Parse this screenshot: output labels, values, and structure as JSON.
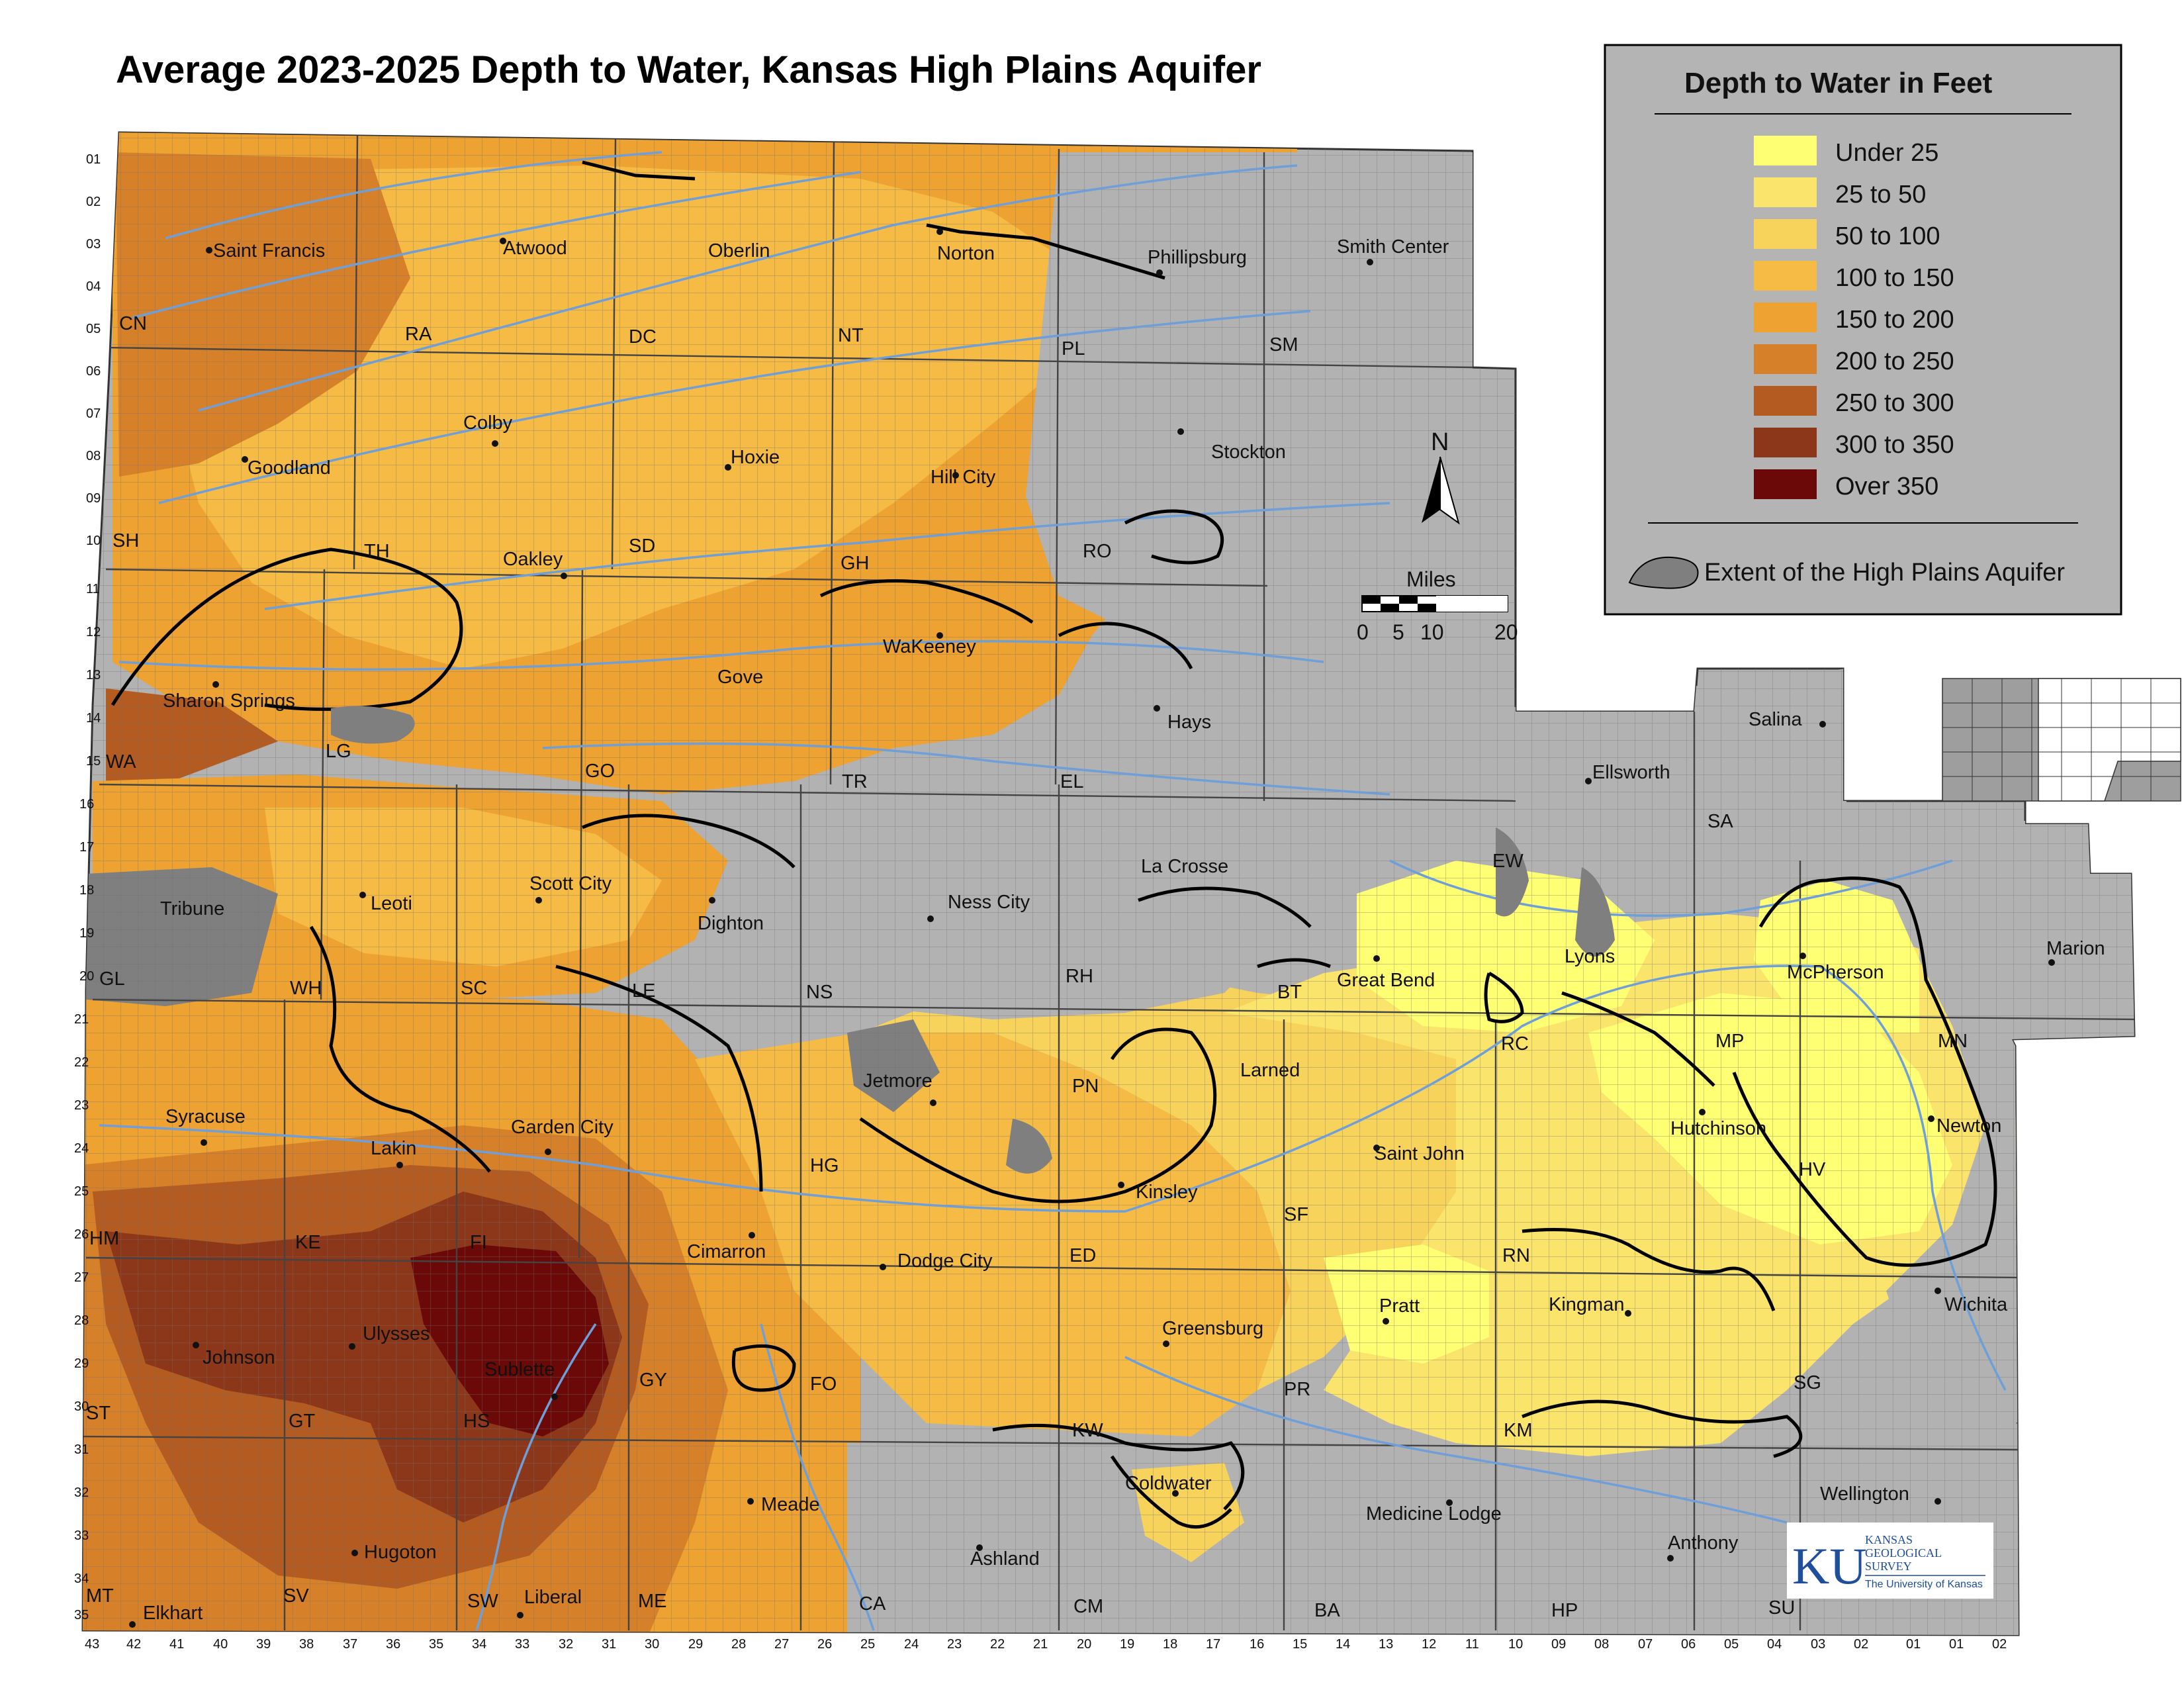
{
  "title": "Average 2023-2025 Depth to Water, Kansas High Plains Aquifer",
  "legend": {
    "title": "Depth to Water in Feet",
    "classes": [
      {
        "label": "Under 25",
        "color": "#ffff73"
      },
      {
        "label": "25 to 50",
        "color": "#fbe46b"
      },
      {
        "label": "50 to 100",
        "color": "#f8d35c"
      },
      {
        "label": "100 to 150",
        "color": "#f6bb45"
      },
      {
        "label": "150 to 200",
        "color": "#eda231"
      },
      {
        "label": "200 to 250",
        "color": "#d6812a"
      },
      {
        "label": "250 to 300",
        "color": "#b45b21"
      },
      {
        "label": "300 to 350",
        "color": "#8c3719"
      },
      {
        "label": "Over 350",
        "color": "#6b0808"
      }
    ],
    "extent_label": "Extent of the High Plains Aquifer",
    "extent_color": "#7f7f7f"
  },
  "scale_bar": {
    "title": "Miles",
    "ticks": [
      "0",
      "5",
      "10",
      "20"
    ]
  },
  "north_label": "N",
  "cities": [
    "Saint Francis",
    "Atwood",
    "Oberlin",
    "Norton",
    "Phillipsburg",
    "Smith Center",
    "Colby",
    "Goodland",
    "Hoxie",
    "Hill City",
    "Stockton",
    "Oakley",
    "Sharon Springs",
    "Gove",
    "WaKeeney",
    "Hays",
    "Salina",
    "Ellsworth",
    "Tribune",
    "Leoti",
    "Scott City",
    "Dighton",
    "Ness City",
    "La Crosse",
    "Lyons",
    "McPherson",
    "Marion",
    "Great Bend",
    "Larned",
    "Jetmore",
    "Syracuse",
    "Lakin",
    "Garden City",
    "Kinsley",
    "Saint John",
    "Hutchinson",
    "Newton",
    "Cimarron",
    "Dodge City",
    "Pratt",
    "Kingman",
    "Wichita",
    "Johnson",
    "Ulysses",
    "Sublette",
    "Greensburg",
    "Coldwater",
    "Meade",
    "Medicine Lodge",
    "Wellington",
    "Hugoton",
    "Liberal",
    "Ashland",
    "Anthony",
    "Elkhart"
  ],
  "county_abbrs": [
    "CN",
    "RA",
    "DC",
    "NT",
    "PL",
    "SM",
    "SH",
    "TH",
    "SD",
    "GH",
    "RO",
    "WA",
    "LG",
    "GO",
    "TR",
    "EL",
    "SA",
    "EW",
    "RH",
    "GL",
    "WH",
    "SC",
    "LE",
    "NS",
    "BT",
    "RC",
    "MP",
    "MN",
    "PN",
    "HG",
    "HM",
    "KE",
    "FI",
    "ED",
    "SF",
    "RN",
    "HV",
    "ST",
    "GT",
    "HS",
    "GY",
    "FO",
    "KW",
    "PR",
    "KM",
    "SG",
    "MT",
    "SV",
    "SW",
    "ME",
    "CA",
    "CM",
    "BA",
    "HP",
    "SU"
  ],
  "township_labels": [
    "01",
    "02",
    "03",
    "04",
    "05",
    "06",
    "07",
    "08",
    "09",
    "10",
    "11",
    "12",
    "13",
    "14",
    "15",
    "16",
    "17",
    "18",
    "19",
    "20",
    "21",
    "22",
    "23",
    "24",
    "25",
    "26",
    "27",
    "28",
    "29",
    "30",
    "31",
    "32",
    "33",
    "34",
    "35"
  ],
  "range_labels": [
    "43",
    "42",
    "41",
    "40",
    "39",
    "38",
    "37",
    "36",
    "35",
    "34",
    "33",
    "32",
    "31",
    "30",
    "29",
    "28",
    "27",
    "26",
    "25",
    "24",
    "23",
    "22",
    "21",
    "20",
    "19",
    "18",
    "17",
    "16",
    "15",
    "14",
    "13",
    "12",
    "11",
    "10",
    "09",
    "08",
    "07",
    "06",
    "05",
    "04",
    "03",
    "02",
    "01",
    "01",
    "02"
  ],
  "logo": {
    "text": "KU",
    "line1": "KANSAS",
    "line2": "GEOLOGICAL",
    "line3": "SURVEY",
    "line4": "The University of Kansas"
  }
}
